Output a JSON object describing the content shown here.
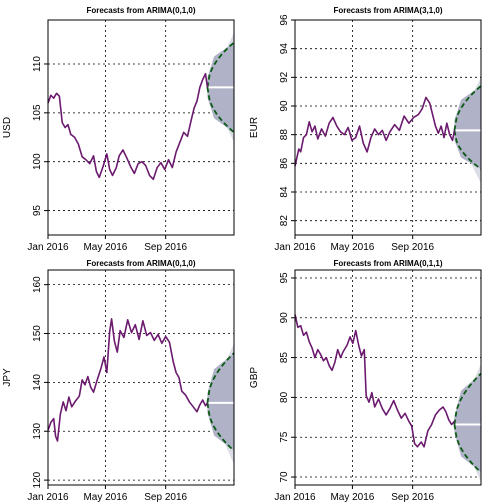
{
  "chart_data": [
    {
      "type": "line",
      "title": "Forecasts from ARIMA(0,1,0)",
      "ylabel": "USD",
      "xlim": [
        0,
        392
      ],
      "ylim": [
        92.5,
        114.5
      ],
      "yticks": [
        95,
        100,
        105,
        110
      ],
      "x_tick_positions": [
        0,
        121,
        248
      ],
      "x_tick_labels": [
        "Jan 2016",
        "May 2016",
        "Sep 2016"
      ],
      "series": [
        {
          "values": [
            {
              "x": 0,
              "y": 106.0
            },
            {
              "x": 6,
              "y": 106.8
            },
            {
              "x": 12,
              "y": 106.5
            },
            {
              "x": 18,
              "y": 107.0
            },
            {
              "x": 24,
              "y": 106.7
            },
            {
              "x": 30,
              "y": 104.0
            },
            {
              "x": 36,
              "y": 103.5
            },
            {
              "x": 42,
              "y": 103.8
            },
            {
              "x": 48,
              "y": 102.8
            },
            {
              "x": 56,
              "y": 102.5
            },
            {
              "x": 64,
              "y": 101.8
            },
            {
              "x": 72,
              "y": 100.5
            },
            {
              "x": 80,
              "y": 100.2
            },
            {
              "x": 88,
              "y": 99.8
            },
            {
              "x": 96,
              "y": 100.6
            },
            {
              "x": 102,
              "y": 99.0
            },
            {
              "x": 108,
              "y": 98.4
            },
            {
              "x": 116,
              "y": 99.5
            },
            {
              "x": 124,
              "y": 100.8
            },
            {
              "x": 130,
              "y": 99.2
            },
            {
              "x": 136,
              "y": 98.6
            },
            {
              "x": 144,
              "y": 99.4
            },
            {
              "x": 150,
              "y": 100.6
            },
            {
              "x": 158,
              "y": 101.2
            },
            {
              "x": 166,
              "y": 100.4
            },
            {
              "x": 174,
              "y": 99.5
            },
            {
              "x": 182,
              "y": 98.8
            },
            {
              "x": 190,
              "y": 99.8
            },
            {
              "x": 198,
              "y": 100.0
            },
            {
              "x": 206,
              "y": 99.6
            },
            {
              "x": 214,
              "y": 98.6
            },
            {
              "x": 222,
              "y": 98.2
            },
            {
              "x": 230,
              "y": 99.4
            },
            {
              "x": 238,
              "y": 99.9
            },
            {
              "x": 246,
              "y": 99.2
            },
            {
              "x": 254,
              "y": 100.2
            },
            {
              "x": 262,
              "y": 99.4
            },
            {
              "x": 270,
              "y": 101.0
            },
            {
              "x": 278,
              "y": 102.0
            },
            {
              "x": 286,
              "y": 103.0
            },
            {
              "x": 294,
              "y": 102.6
            },
            {
              "x": 302,
              "y": 104.3
            },
            {
              "x": 308,
              "y": 105.5
            },
            {
              "x": 314,
              "y": 106.2
            },
            {
              "x": 320,
              "y": 107.6
            },
            {
              "x": 326,
              "y": 108.4
            },
            {
              "x": 332,
              "y": 109.0
            },
            {
              "x": 336,
              "y": 107.6
            }
          ]
        }
      ],
      "forecast": {
        "x_start": 336,
        "x_end": 392,
        "point": 107.6,
        "upper_80": 108.6,
        "lower_80": 106.6,
        "upper_95": 113.2,
        "lower_95": 102.0,
        "upper_dashed": 112.2,
        "lower_dashed": 103.0
      },
      "grid": true,
      "colors": {
        "series": "#6b1a6e",
        "band_80": "#b0b2c8",
        "band_95": "#dadce6",
        "point_forecast": "#ffffff",
        "dashed": "#0a5a14"
      }
    },
    {
      "type": "line",
      "title": "Forecasts from ARIMA(3,1,0)",
      "ylabel": "EUR",
      "xlim": [
        0,
        392
      ],
      "ylim": [
        81.0,
        96.0
      ],
      "yticks": [
        82,
        84,
        86,
        88,
        90,
        92,
        94,
        96
      ],
      "x_tick_positions": [
        0,
        121,
        248
      ],
      "x_tick_labels": [
        "Jan 2016",
        "May 2016",
        "Sep 2016"
      ],
      "series": [
        {
          "values": [
            {
              "x": 0,
              "y": 85.8
            },
            {
              "x": 4,
              "y": 86.4
            },
            {
              "x": 8,
              "y": 87.0
            },
            {
              "x": 12,
              "y": 86.8
            },
            {
              "x": 18,
              "y": 87.8
            },
            {
              "x": 24,
              "y": 88.0
            },
            {
              "x": 30,
              "y": 88.9
            },
            {
              "x": 36,
              "y": 88.2
            },
            {
              "x": 42,
              "y": 88.6
            },
            {
              "x": 48,
              "y": 87.7
            },
            {
              "x": 56,
              "y": 88.4
            },
            {
              "x": 64,
              "y": 87.9
            },
            {
              "x": 72,
              "y": 88.8
            },
            {
              "x": 80,
              "y": 89.2
            },
            {
              "x": 88,
              "y": 88.6
            },
            {
              "x": 96,
              "y": 88.2
            },
            {
              "x": 104,
              "y": 88.0
            },
            {
              "x": 112,
              "y": 88.5
            },
            {
              "x": 120,
              "y": 87.6
            },
            {
              "x": 128,
              "y": 87.8
            },
            {
              "x": 136,
              "y": 88.6
            },
            {
              "x": 144,
              "y": 87.4
            },
            {
              "x": 152,
              "y": 86.8
            },
            {
              "x": 160,
              "y": 87.8
            },
            {
              "x": 168,
              "y": 88.4
            },
            {
              "x": 176,
              "y": 88.0
            },
            {
              "x": 184,
              "y": 88.3
            },
            {
              "x": 192,
              "y": 87.6
            },
            {
              "x": 200,
              "y": 88.2
            },
            {
              "x": 210,
              "y": 88.7
            },
            {
              "x": 220,
              "y": 88.3
            },
            {
              "x": 230,
              "y": 89.3
            },
            {
              "x": 240,
              "y": 88.8
            },
            {
              "x": 250,
              "y": 89.2
            },
            {
              "x": 260,
              "y": 89.4
            },
            {
              "x": 268,
              "y": 89.8
            },
            {
              "x": 276,
              "y": 90.6
            },
            {
              "x": 284,
              "y": 90.2
            },
            {
              "x": 290,
              "y": 89.4
            },
            {
              "x": 296,
              "y": 88.6
            },
            {
              "x": 302,
              "y": 88.1
            },
            {
              "x": 308,
              "y": 88.6
            },
            {
              "x": 314,
              "y": 87.8
            },
            {
              "x": 320,
              "y": 88.8
            },
            {
              "x": 326,
              "y": 88.0
            },
            {
              "x": 332,
              "y": 87.6
            },
            {
              "x": 336,
              "y": 88.3
            }
          ]
        }
      ],
      "forecast": {
        "x_start": 336,
        "x_end": 392,
        "point": 88.3,
        "upper_80": 89.0,
        "lower_80": 87.6,
        "upper_95": 92.0,
        "lower_95": 84.6,
        "upper_dashed": 91.4,
        "lower_dashed": 85.6
      },
      "grid": true,
      "colors": {
        "series": "#6b1a6e",
        "band_80": "#b0b2c8",
        "band_95": "#dadce6",
        "point_forecast": "#ffffff",
        "dashed": "#0a5a14"
      }
    },
    {
      "type": "line",
      "title": "Forecasts from ARIMA(0,1,0)",
      "ylabel": "JPY",
      "xlim": [
        0,
        392
      ],
      "ylim": [
        119.0,
        163.0
      ],
      "yticks": [
        120,
        130,
        140,
        150,
        160
      ],
      "x_tick_positions": [
        0,
        121,
        248
      ],
      "x_tick_labels": [
        "Jan 2016",
        "May 2016",
        "Sep 2016"
      ],
      "series": [
        {
          "values": [
            {
              "x": 0,
              "y": 130.2
            },
            {
              "x": 6,
              "y": 131.8
            },
            {
              "x": 12,
              "y": 132.6
            },
            {
              "x": 16,
              "y": 129.0
            },
            {
              "x": 20,
              "y": 128.0
            },
            {
              "x": 26,
              "y": 133.5
            },
            {
              "x": 32,
              "y": 136.0
            },
            {
              "x": 38,
              "y": 134.2
            },
            {
              "x": 44,
              "y": 137.0
            },
            {
              "x": 50,
              "y": 135.0
            },
            {
              "x": 58,
              "y": 136.2
            },
            {
              "x": 66,
              "y": 137.2
            },
            {
              "x": 72,
              "y": 140.5
            },
            {
              "x": 78,
              "y": 139.5
            },
            {
              "x": 84,
              "y": 141.2
            },
            {
              "x": 90,
              "y": 139.0
            },
            {
              "x": 96,
              "y": 138.0
            },
            {
              "x": 104,
              "y": 140.6
            },
            {
              "x": 112,
              "y": 143.0
            },
            {
              "x": 118,
              "y": 145.2
            },
            {
              "x": 124,
              "y": 142.0
            },
            {
              "x": 130,
              "y": 150.4
            },
            {
              "x": 134,
              "y": 153.0
            },
            {
              "x": 140,
              "y": 148.4
            },
            {
              "x": 146,
              "y": 146.2
            },
            {
              "x": 152,
              "y": 150.6
            },
            {
              "x": 160,
              "y": 149.2
            },
            {
              "x": 168,
              "y": 152.8
            },
            {
              "x": 176,
              "y": 150.2
            },
            {
              "x": 184,
              "y": 151.8
            },
            {
              "x": 192,
              "y": 148.8
            },
            {
              "x": 200,
              "y": 152.6
            },
            {
              "x": 208,
              "y": 149.6
            },
            {
              "x": 216,
              "y": 150.2
            },
            {
              "x": 224,
              "y": 148.6
            },
            {
              "x": 232,
              "y": 149.8
            },
            {
              "x": 240,
              "y": 148.0
            },
            {
              "x": 248,
              "y": 149.4
            },
            {
              "x": 256,
              "y": 148.2
            },
            {
              "x": 264,
              "y": 144.2
            },
            {
              "x": 270,
              "y": 142.0
            },
            {
              "x": 276,
              "y": 141.0
            },
            {
              "x": 282,
              "y": 138.2
            },
            {
              "x": 290,
              "y": 137.4
            },
            {
              "x": 298,
              "y": 136.0
            },
            {
              "x": 306,
              "y": 135.0
            },
            {
              "x": 314,
              "y": 134.0
            },
            {
              "x": 320,
              "y": 135.4
            },
            {
              "x": 326,
              "y": 136.4
            },
            {
              "x": 332,
              "y": 135.2
            },
            {
              "x": 336,
              "y": 135.8
            }
          ]
        }
      ],
      "forecast": {
        "x_start": 336,
        "x_end": 392,
        "point": 135.8,
        "upper_80": 137.8,
        "lower_80": 133.8,
        "upper_95": 148.0,
        "lower_95": 123.2,
        "upper_dashed": 146.0,
        "lower_dashed": 126.0
      },
      "grid": true,
      "colors": {
        "series": "#6b1a6e",
        "band_80": "#b0b2c8",
        "band_95": "#dadce6",
        "point_forecast": "#ffffff",
        "dashed": "#0a5a14"
      }
    },
    {
      "type": "line",
      "title": "Forecasts from ARIMA(0,1,1)",
      "ylabel": "GBP",
      "xlim": [
        0,
        392
      ],
      "ylim": [
        69.0,
        96.0
      ],
      "yticks": [
        70,
        75,
        80,
        85,
        90,
        95
      ],
      "x_tick_positions": [
        0,
        121,
        248
      ],
      "x_tick_labels": [
        "Jan 2016",
        "May 2016",
        "Sep 2016"
      ],
      "series": [
        {
          "values": [
            {
              "x": 0,
              "y": 90.4
            },
            {
              "x": 6,
              "y": 88.8
            },
            {
              "x": 12,
              "y": 89.0
            },
            {
              "x": 18,
              "y": 87.8
            },
            {
              "x": 24,
              "y": 88.2
            },
            {
              "x": 30,
              "y": 87.0
            },
            {
              "x": 36,
              "y": 86.2
            },
            {
              "x": 42,
              "y": 85.0
            },
            {
              "x": 48,
              "y": 86.0
            },
            {
              "x": 54,
              "y": 85.4
            },
            {
              "x": 60,
              "y": 84.6
            },
            {
              "x": 66,
              "y": 85.0
            },
            {
              "x": 72,
              "y": 84.0
            },
            {
              "x": 78,
              "y": 83.4
            },
            {
              "x": 84,
              "y": 84.4
            },
            {
              "x": 90,
              "y": 86.0
            },
            {
              "x": 96,
              "y": 85.0
            },
            {
              "x": 102,
              "y": 85.8
            },
            {
              "x": 110,
              "y": 86.6
            },
            {
              "x": 116,
              "y": 87.6
            },
            {
              "x": 122,
              "y": 86.8
            },
            {
              "x": 128,
              "y": 88.4
            },
            {
              "x": 134,
              "y": 86.6
            },
            {
              "x": 140,
              "y": 85.2
            },
            {
              "x": 146,
              "y": 86.0
            },
            {
              "x": 150,
              "y": 80.2
            },
            {
              "x": 156,
              "y": 79.4
            },
            {
              "x": 162,
              "y": 80.6
            },
            {
              "x": 168,
              "y": 78.8
            },
            {
              "x": 176,
              "y": 79.8
            },
            {
              "x": 184,
              "y": 78.6
            },
            {
              "x": 192,
              "y": 77.8
            },
            {
              "x": 200,
              "y": 78.6
            },
            {
              "x": 208,
              "y": 79.6
            },
            {
              "x": 216,
              "y": 78.4
            },
            {
              "x": 224,
              "y": 77.4
            },
            {
              "x": 232,
              "y": 78.0
            },
            {
              "x": 240,
              "y": 77.0
            },
            {
              "x": 246,
              "y": 76.4
            },
            {
              "x": 252,
              "y": 74.2
            },
            {
              "x": 258,
              "y": 73.8
            },
            {
              "x": 266,
              "y": 74.4
            },
            {
              "x": 272,
              "y": 73.8
            },
            {
              "x": 280,
              "y": 75.8
            },
            {
              "x": 288,
              "y": 76.6
            },
            {
              "x": 296,
              "y": 77.8
            },
            {
              "x": 304,
              "y": 78.4
            },
            {
              "x": 312,
              "y": 78.8
            },
            {
              "x": 318,
              "y": 78.2
            },
            {
              "x": 324,
              "y": 77.2
            },
            {
              "x": 330,
              "y": 76.6
            },
            {
              "x": 336,
              "y": 77.0
            }
          ]
        }
      ],
      "forecast": {
        "x_start": 336,
        "x_end": 392,
        "point": 76.6,
        "upper_80": 77.6,
        "lower_80": 75.6,
        "upper_95": 84.2,
        "lower_95": 69.4,
        "upper_dashed": 83.0,
        "lower_dashed": 70.6
      },
      "grid": true,
      "colors": {
        "series": "#6b1a6e",
        "band_80": "#b0b2c8",
        "band_95": "#dadce6",
        "point_forecast": "#ffffff",
        "dashed": "#0a5a14"
      }
    }
  ]
}
